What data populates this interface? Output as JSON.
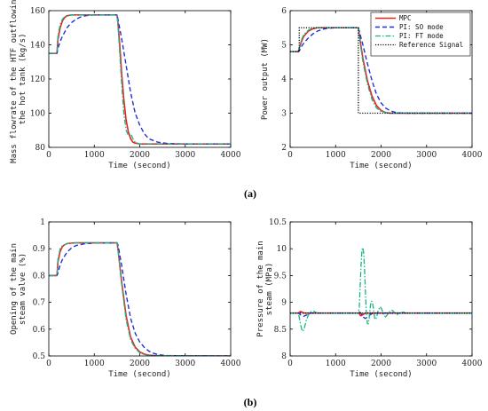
{
  "series_styles": [
    {
      "color": "#e8231f",
      "dash": "",
      "width": 1.6
    },
    {
      "color": "#1f30d6",
      "dash": "5,3",
      "width": 1.4
    },
    {
      "color": "#18b582",
      "dash": "6,2,1.5,2",
      "width": 1.3
    },
    {
      "color": "#000000",
      "dash": "1.2,1.6",
      "width": 1.3
    }
  ],
  "panel_tags": [
    "(a)",
    "(b)"
  ],
  "chart_data": [
    {
      "type": "line",
      "xlabel": "Time (second)",
      "ylabel_lines": [
        "Mass flowrate of the HTF outflowing",
        "the hot tank (kg/s)"
      ],
      "xlim": [
        0,
        4000
      ],
      "ylim": [
        80,
        160
      ],
      "xticks": [
        0,
        1000,
        2000,
        3000,
        4000
      ],
      "yticks": [
        80,
        100,
        120,
        140,
        160
      ],
      "ytick_labels": [
        "80",
        "100",
        "120",
        "140",
        "160"
      ],
      "legend": null,
      "series": [
        {
          "x": [
            0,
            180,
            200,
            250,
            300,
            350,
            400,
            500,
            600,
            800,
            1000,
            1500,
            1520,
            1560,
            1600,
            1650,
            1700,
            1750,
            1800,
            1850,
            1900,
            2000,
            2200,
            4000
          ],
          "y": [
            135,
            135,
            143,
            150,
            154,
            156,
            157,
            157.5,
            157.5,
            157.5,
            157.5,
            157.5,
            153,
            140,
            124,
            108,
            96,
            89,
            85,
            83,
            82.5,
            82,
            82,
            82
          ]
        },
        {
          "x": [
            0,
            180,
            200,
            250,
            300,
            400,
            500,
            600,
            700,
            800,
            1000,
            1500,
            1520,
            1600,
            1700,
            1800,
            1900,
            2000,
            2100,
            2200,
            2400,
            2600,
            3000,
            4000
          ],
          "y": [
            135,
            135,
            138,
            142,
            145,
            150,
            153,
            155,
            156.3,
            157,
            157.5,
            157.5,
            155,
            144,
            128,
            112,
            100,
            93,
            88,
            85,
            83,
            82.3,
            82,
            82
          ]
        },
        {
          "x": [
            0,
            180,
            200,
            250,
            300,
            350,
            400,
            500,
            600,
            1000,
            1500,
            1520,
            1560,
            1600,
            1650,
            1700,
            1750,
            1800,
            1850,
            1900,
            1950,
            2000,
            2100,
            2200,
            4000
          ],
          "y": [
            135,
            135,
            145,
            152,
            155,
            156.5,
            157.2,
            157.5,
            157.5,
            157.5,
            157.5,
            152,
            135,
            118,
            100,
            90,
            87,
            88,
            85,
            83,
            82.5,
            82,
            81.8,
            82,
            82
          ]
        }
      ]
    },
    {
      "type": "line",
      "xlabel": "Time (second)",
      "ylabel_lines": [
        "Power output (MW)"
      ],
      "xlim": [
        0,
        4000
      ],
      "ylim": [
        2,
        6
      ],
      "xticks": [
        0,
        1000,
        2000,
        3000,
        4000
      ],
      "yticks": [
        2,
        3,
        4,
        5,
        6
      ],
      "ytick_labels": [
        "2",
        "3",
        "4",
        "5",
        "6"
      ],
      "legend": {
        "entries": [
          "MPC",
          "PI: SO mode",
          "PI: FT mode",
          "Reference Signal"
        ],
        "placement": "top-right"
      },
      "series": [
        {
          "x": [
            0,
            180,
            200,
            250,
            300,
            400,
            500,
            600,
            800,
            1000,
            1500,
            1520,
            1600,
            1700,
            1800,
            1900,
            2000,
            2100,
            2200,
            4000
          ],
          "y": [
            4.8,
            4.8,
            4.9,
            5.1,
            5.25,
            5.4,
            5.47,
            5.5,
            5.5,
            5.5,
            5.5,
            5.3,
            4.6,
            3.95,
            3.5,
            3.22,
            3.08,
            3.02,
            3.0,
            3.0
          ]
        },
        {
          "x": [
            0,
            180,
            200,
            250,
            300,
            400,
            500,
            600,
            700,
            800,
            1000,
            1500,
            1520,
            1600,
            1700,
            1800,
            1900,
            2000,
            2100,
            2200,
            2300,
            2400,
            2600,
            4000
          ],
          "y": [
            4.8,
            4.8,
            4.82,
            4.95,
            5.05,
            5.2,
            5.32,
            5.4,
            5.45,
            5.48,
            5.5,
            5.5,
            5.4,
            5.0,
            4.45,
            3.95,
            3.55,
            3.3,
            3.15,
            3.07,
            3.03,
            3.01,
            3.0,
            3.0
          ]
        },
        {
          "x": [
            0,
            180,
            200,
            250,
            300,
            400,
            500,
            600,
            1000,
            1500,
            1520,
            1600,
            1700,
            1800,
            1900,
            2000,
            2200,
            4000
          ],
          "y": [
            4.8,
            4.8,
            4.92,
            5.15,
            5.3,
            5.43,
            5.49,
            5.5,
            5.5,
            5.5,
            5.25,
            4.5,
            3.85,
            3.4,
            3.15,
            3.05,
            3.0,
            3.0
          ]
        },
        {
          "x": [
            0,
            200,
            200,
            1500,
            1500,
            4000
          ],
          "y": [
            4.8,
            4.8,
            5.5,
            5.5,
            3.0,
            3.0
          ]
        }
      ]
    },
    {
      "type": "line",
      "xlabel": "Time (second)",
      "ylabel_lines": [
        "Opening of the main",
        "steam valve (%)"
      ],
      "xlim": [
        0,
        4000
      ],
      "ylim": [
        0.5,
        1.0
      ],
      "xticks": [
        0,
        1000,
        2000,
        3000,
        4000
      ],
      "yticks": [
        0.5,
        0.6,
        0.7,
        0.8,
        0.9,
        1.0
      ],
      "ytick_labels": [
        "0.5",
        "0.6",
        "0.7",
        "0.8",
        "0.9",
        "1"
      ],
      "legend": null,
      "series": [
        {
          "x": [
            0,
            180,
            200,
            250,
            300,
            350,
            400,
            500,
            600,
            800,
            1000,
            1500,
            1520,
            1600,
            1700,
            1800,
            1900,
            2000,
            2100,
            2200,
            2400,
            4000
          ],
          "y": [
            0.8,
            0.8,
            0.85,
            0.89,
            0.908,
            0.915,
            0.919,
            0.921,
            0.922,
            0.922,
            0.922,
            0.922,
            0.9,
            0.78,
            0.65,
            0.57,
            0.533,
            0.515,
            0.507,
            0.503,
            0.5,
            0.5
          ]
        },
        {
          "x": [
            0,
            180,
            200,
            250,
            300,
            400,
            500,
            600,
            800,
            1000,
            1500,
            1520,
            1600,
            1700,
            1800,
            1900,
            2000,
            2100,
            2200,
            2300,
            2400,
            2600,
            4000
          ],
          "y": [
            0.8,
            0.8,
            0.81,
            0.84,
            0.86,
            0.887,
            0.903,
            0.912,
            0.919,
            0.921,
            0.922,
            0.915,
            0.84,
            0.73,
            0.64,
            0.585,
            0.552,
            0.532,
            0.518,
            0.51,
            0.505,
            0.501,
            0.5
          ]
        },
        {
          "x": [
            0,
            180,
            200,
            250,
            300,
            400,
            500,
            600,
            1000,
            1500,
            1520,
            1600,
            1700,
            1800,
            1900,
            2000,
            2100,
            2200,
            4000
          ],
          "y": [
            0.8,
            0.8,
            0.86,
            0.9,
            0.912,
            0.919,
            0.921,
            0.922,
            0.922,
            0.922,
            0.9,
            0.77,
            0.635,
            0.56,
            0.528,
            0.512,
            0.505,
            0.502,
            0.5
          ]
        }
      ]
    },
    {
      "type": "line",
      "xlabel": "Time (second)",
      "ylabel_lines": [
        "Pressure of the main",
        "steam (MPa)"
      ],
      "xlim": [
        0,
        4000
      ],
      "ylim": [
        8,
        10.5
      ],
      "xticks": [
        0,
        1000,
        2000,
        3000,
        4000
      ],
      "yticks": [
        8,
        8.5,
        9,
        9.5,
        10,
        10.5
      ],
      "ytick_labels": [
        "8",
        "8.5",
        "9",
        "9.5",
        "10",
        "10.5"
      ],
      "legend": null,
      "series": [
        {
          "x": [
            0,
            180,
            200,
            230,
            260,
            300,
            350,
            400,
            1500,
            1520,
            1540,
            1560,
            1600,
            1650,
            1700,
            4000
          ],
          "y": [
            8.8,
            8.8,
            8.81,
            8.83,
            8.82,
            8.8,
            8.8,
            8.8,
            8.8,
            8.79,
            8.76,
            8.75,
            8.77,
            8.8,
            8.8,
            8.8
          ]
        },
        {
          "x": [
            0,
            180,
            200,
            250,
            300,
            350,
            400,
            450,
            500,
            1500,
            1520,
            1560,
            1600,
            1650,
            1700,
            1750,
            1800,
            1900,
            4000
          ],
          "y": [
            8.8,
            8.8,
            8.79,
            8.75,
            8.74,
            8.76,
            8.78,
            8.8,
            8.8,
            8.8,
            8.82,
            8.8,
            8.73,
            8.7,
            8.72,
            8.76,
            8.79,
            8.8,
            8.8
          ]
        },
        {
          "x": [
            0,
            180,
            200,
            230,
            260,
            280,
            300,
            330,
            360,
            400,
            450,
            500,
            550,
            600,
            1500,
            1520,
            1540,
            1560,
            1580,
            1600,
            1620,
            1640,
            1660,
            1680,
            1700,
            1720,
            1740,
            1760,
            1780,
            1800,
            1820,
            1840,
            1860,
            1880,
            1900,
            1940,
            1980,
            2020,
            2060,
            2100,
            2150,
            2200,
            2250,
            2300,
            2350,
            2400,
            2450,
            2500,
            2550,
            2600,
            4000
          ],
          "y": [
            8.8,
            8.8,
            8.72,
            8.58,
            8.48,
            8.46,
            8.49,
            8.58,
            8.68,
            8.76,
            8.82,
            8.84,
            8.82,
            8.8,
            8.8,
            8.9,
            9.3,
            9.7,
            9.98,
            10.02,
            9.9,
            9.55,
            9.1,
            8.75,
            8.6,
            8.6,
            8.72,
            8.9,
            9.02,
            9.02,
            8.95,
            8.82,
            8.7,
            8.68,
            8.72,
            8.86,
            8.92,
            8.86,
            8.76,
            8.73,
            8.78,
            8.84,
            8.85,
            8.8,
            8.77,
            8.78,
            8.81,
            8.82,
            8.8,
            8.8,
            8.8
          ]
        },
        {
          "x": [
            0,
            4000
          ],
          "y": [
            8.8,
            8.8
          ]
        }
      ]
    }
  ]
}
